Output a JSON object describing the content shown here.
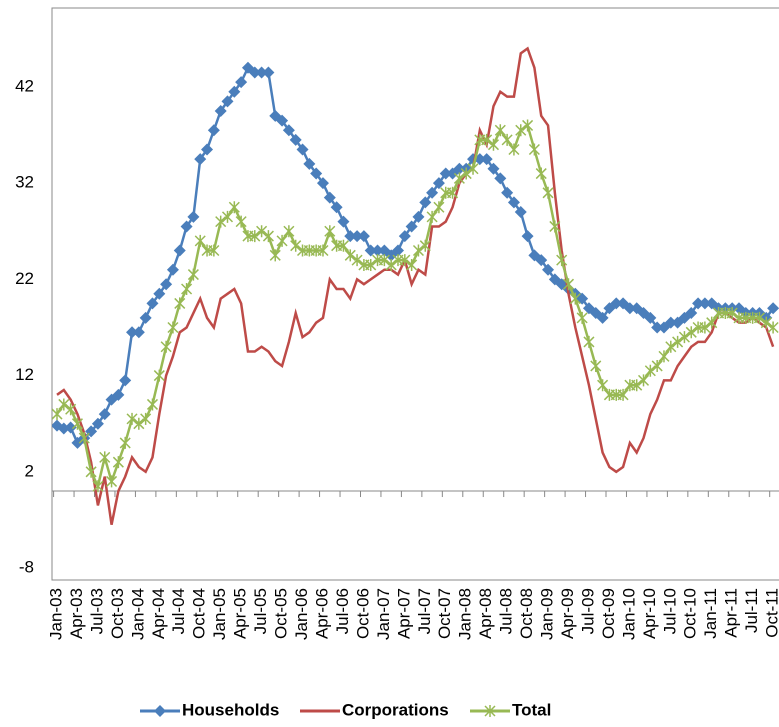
{
  "chart_data": {
    "type": "line",
    "categories": [
      "Jan-03",
      null,
      null,
      "Apr-03",
      null,
      null,
      "Jul-03",
      null,
      null,
      "Oct-03",
      null,
      null,
      "Jan-04",
      null,
      null,
      "Apr-04",
      null,
      null,
      "Jul-04",
      null,
      null,
      "Oct-04",
      null,
      null,
      "Jan-05",
      null,
      null,
      "Apr-05",
      null,
      null,
      "Jul-05",
      null,
      null,
      "Oct-05",
      null,
      null,
      "Jan-06",
      null,
      null,
      "Apr-06",
      null,
      null,
      "Jul-06",
      null,
      null,
      "Oct-06",
      null,
      null,
      "Jan-07",
      null,
      null,
      "Apr-07",
      null,
      null,
      "Jul-07",
      null,
      null,
      "Oct-07",
      null,
      null,
      "Jan-08",
      null,
      null,
      "Apr-08",
      null,
      null,
      "Jul-08",
      null,
      null,
      "Oct-08",
      null,
      null,
      "Jan-09",
      null,
      null,
      "Apr-09",
      null,
      null,
      "Jul-09",
      null,
      null,
      "Oct-09",
      null,
      null,
      "Jan-10",
      null,
      null,
      "Apr-10",
      null,
      null,
      "Jul-10",
      null,
      null,
      "Oct-10",
      null,
      null,
      "Jan-11",
      null,
      null,
      "Apr-11",
      null,
      null,
      "Jul-11",
      null,
      null,
      "Oct-11"
    ],
    "series": [
      {
        "name": "Households",
        "color": "#4a7ebb",
        "marker": "diamond",
        "values": [
          6.8,
          6.5,
          6.6,
          5.0,
          5.5,
          6.2,
          7,
          8,
          9.5,
          10,
          11.5,
          16.5,
          16.5,
          18,
          19.5,
          20.5,
          21.5,
          23,
          25,
          27.5,
          28.5,
          34.5,
          35.5,
          37.5,
          39.5,
          40.5,
          41.5,
          42.5,
          44,
          43.5,
          43.5,
          43.5,
          39,
          38.5,
          37.5,
          36.5,
          35.5,
          34,
          33,
          32,
          30.5,
          29.5,
          28,
          26.5,
          26.5,
          26.5,
          25,
          25,
          25,
          24.5,
          25,
          26.5,
          27.5,
          28.5,
          30,
          31,
          32,
          33,
          33,
          33.5,
          33.5,
          34.5,
          34.5,
          34.5,
          33.5,
          32.5,
          31,
          30,
          29,
          26.5,
          24.5,
          24,
          23,
          22,
          21.5,
          21,
          20.5,
          20,
          19,
          18.5,
          18,
          19,
          19.5,
          19.5,
          19,
          19,
          18.5,
          18,
          17,
          17,
          17.5,
          17.5,
          18,
          18.5,
          19.5,
          19.5,
          19.5,
          19,
          19,
          19,
          19,
          18.5,
          18.5,
          18.5,
          18,
          19
        ]
      },
      {
        "name": "Corporations",
        "color": "#be4b48",
        "marker": "none",
        "values": [
          10,
          10.5,
          9.5,
          8,
          6,
          3,
          -1.5,
          1.5,
          -3.5,
          0,
          1.5,
          3.5,
          2.5,
          2,
          3.5,
          8,
          12,
          14,
          16.5,
          17,
          18.5,
          20,
          18,
          17,
          20,
          20.5,
          21,
          19.5,
          14.5,
          14.5,
          15,
          14.5,
          13.5,
          13,
          15.5,
          18.5,
          16,
          16.5,
          17.5,
          18,
          22,
          21,
          21,
          20,
          22,
          21.5,
          22,
          22.5,
          23,
          23,
          22.5,
          24,
          21.5,
          23,
          22.5,
          27.5,
          27.5,
          28,
          29.5,
          32,
          33,
          33.5,
          37.5,
          36,
          40,
          41.5,
          41,
          41,
          45.5,
          46,
          44,
          39,
          38,
          31,
          25,
          20.5,
          17,
          14,
          11,
          7.5,
          4,
          2.5,
          2,
          2.5,
          5,
          4,
          5.5,
          8,
          9.5,
          11.5,
          11.5,
          13,
          14,
          15,
          15.5,
          15.5,
          16.5,
          18.5,
          18.5,
          18,
          17.5,
          17.5,
          18,
          17.5,
          17,
          15
        ]
      },
      {
        "name": "Total",
        "color": "#98b954",
        "marker": "star",
        "values": [
          8,
          9,
          8.5,
          7,
          5.5,
          2,
          0.5,
          3.5,
          1,
          3,
          5,
          7.5,
          7,
          7.5,
          9,
          12,
          15,
          17,
          19.5,
          21,
          22.5,
          26,
          25,
          25,
          28,
          28.5,
          29.5,
          28,
          26.5,
          26.5,
          27,
          26.5,
          24.5,
          26,
          27,
          25.5,
          25,
          25,
          25,
          25,
          27,
          25.5,
          25.5,
          24.5,
          24,
          23.5,
          23.5,
          24,
          24,
          23.5,
          24,
          24,
          23.5,
          25,
          25.5,
          28.5,
          29.5,
          31,
          31,
          32.5,
          33,
          33.5,
          36.5,
          36.5,
          36,
          37.5,
          36.5,
          35.5,
          37.5,
          38,
          35.5,
          33,
          31,
          27.5,
          24,
          21.5,
          20,
          18,
          15.5,
          13,
          11,
          10,
          10,
          10,
          11,
          11,
          11.5,
          12.5,
          13,
          14,
          15,
          15.5,
          16,
          16.5,
          17,
          17,
          17.5,
          18.5,
          18.5,
          18.5,
          18,
          18,
          18,
          18,
          17.5,
          17
        ]
      }
    ],
    "ylim": [
      -8,
      50
    ],
    "yticks": [
      -8,
      2,
      12,
      22,
      32,
      42
    ],
    "grid": false,
    "legend": "bottom"
  }
}
